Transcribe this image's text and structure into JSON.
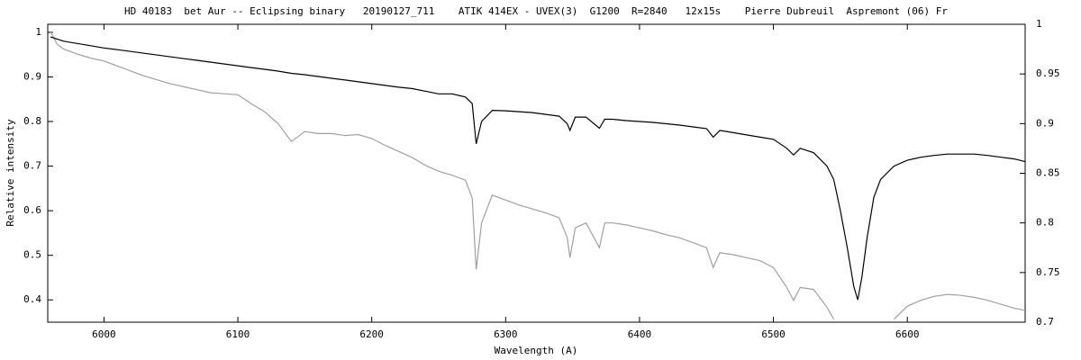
{
  "chart_data": {
    "type": "line",
    "title": "HD 40183  bet Aur -- Eclipsing binary   20190127_711    ATIK 414EX - UVEX(3)  G1200  R=2840   12x15s    Pierre Dubreuil  Aspremont (06) Fr",
    "xlabel": "Wavelength (A)",
    "ylabel": "Relative intensity",
    "xlim": [
      5958,
      6688
    ],
    "xticks": [
      6000,
      6100,
      6200,
      6300,
      6400,
      6500,
      6600
    ],
    "ylim": [
      0.35,
      1.018
    ],
    "yticks": [
      0.4,
      0.5,
      0.6,
      0.7,
      0.8,
      0.9,
      1
    ],
    "y2lim": [
      0.7,
      1
    ],
    "y2ticks": [
      0.7,
      0.75,
      0.8,
      0.85,
      0.9,
      0.95,
      1
    ],
    "x": [
      5960,
      5965,
      5970,
      5980,
      5990,
      6000,
      6010,
      6020,
      6030,
      6040,
      6050,
      6060,
      6070,
      6080,
      6090,
      6100,
      6110,
      6120,
      6130,
      6140,
      6150,
      6160,
      6170,
      6180,
      6190,
      6200,
      6210,
      6220,
      6230,
      6240,
      6250,
      6260,
      6270,
      6275,
      6278,
      6282,
      6290,
      6300,
      6310,
      6320,
      6330,
      6340,
      6346,
      6348,
      6352,
      6360,
      6368,
      6370,
      6374,
      6380,
      6390,
      6400,
      6410,
      6420,
      6430,
      6440,
      6450,
      6455,
      6460,
      6470,
      6480,
      6490,
      6500,
      6510,
      6515,
      6520,
      6530,
      6540,
      6545,
      6550,
      6555,
      6560,
      6563,
      6566,
      6570,
      6575,
      6580,
      6590,
      6600,
      6610,
      6620,
      6630,
      6640,
      6650,
      6660,
      6670,
      6680,
      6688
    ],
    "series": [
      {
        "color": "#000000",
        "values": [
          0.99,
          0.985,
          0.98,
          0.975,
          0.97,
          0.965,
          0.961,
          0.957,
          0.953,
          0.949,
          0.945,
          0.941,
          0.937,
          0.933,
          0.929,
          0.925,
          0.921,
          0.917,
          0.913,
          0.908,
          0.905,
          0.901,
          0.897,
          0.893,
          0.889,
          0.885,
          0.881,
          0.877,
          0.874,
          0.868,
          0.862,
          0.862,
          0.855,
          0.84,
          0.75,
          0.8,
          0.825,
          0.824,
          0.822,
          0.82,
          0.816,
          0.812,
          0.795,
          0.78,
          0.81,
          0.81,
          0.79,
          0.785,
          0.805,
          0.805,
          0.802,
          0.8,
          0.798,
          0.795,
          0.792,
          0.788,
          0.784,
          0.765,
          0.78,
          0.775,
          0.77,
          0.765,
          0.76,
          0.74,
          0.725,
          0.74,
          0.73,
          0.7,
          0.67,
          0.6,
          0.52,
          0.43,
          0.4,
          0.45,
          0.54,
          0.63,
          0.67,
          0.7,
          0.713,
          0.72,
          0.724,
          0.727,
          0.727,
          0.727,
          0.724,
          0.72,
          0.716,
          0.71
        ]
      },
      {
        "color": "#a0a0a0",
        "axis": "y2",
        "values": [
          0.993,
          0.98,
          0.975,
          0.97,
          0.966,
          0.963,
          0.958,
          0.953,
          0.948,
          0.944,
          0.94,
          0.937,
          0.934,
          0.931,
          0.93,
          0.929,
          0.92,
          0.912,
          0.9,
          0.882,
          0.892,
          0.89,
          0.89,
          0.888,
          0.889,
          0.885,
          0.878,
          0.872,
          0.866,
          0.858,
          0.852,
          0.848,
          0.843,
          0.825,
          0.753,
          0.8,
          0.828,
          0.823,
          0.818,
          0.814,
          0.81,
          0.805,
          0.785,
          0.765,
          0.795,
          0.8,
          0.78,
          0.775,
          0.8,
          0.8,
          0.798,
          0.795,
          0.792,
          0.788,
          0.785,
          0.78,
          0.775,
          0.755,
          0.77,
          0.768,
          0.765,
          0.762,
          0.755,
          0.735,
          0.722,
          0.735,
          0.733,
          0.715,
          0.703,
          null,
          null,
          null,
          null,
          null,
          null,
          null,
          null,
          0.703,
          0.716,
          0.722,
          0.726,
          0.728,
          0.727,
          0.725,
          0.722,
          0.718,
          0.714,
          0.712
        ]
      }
    ]
  }
}
